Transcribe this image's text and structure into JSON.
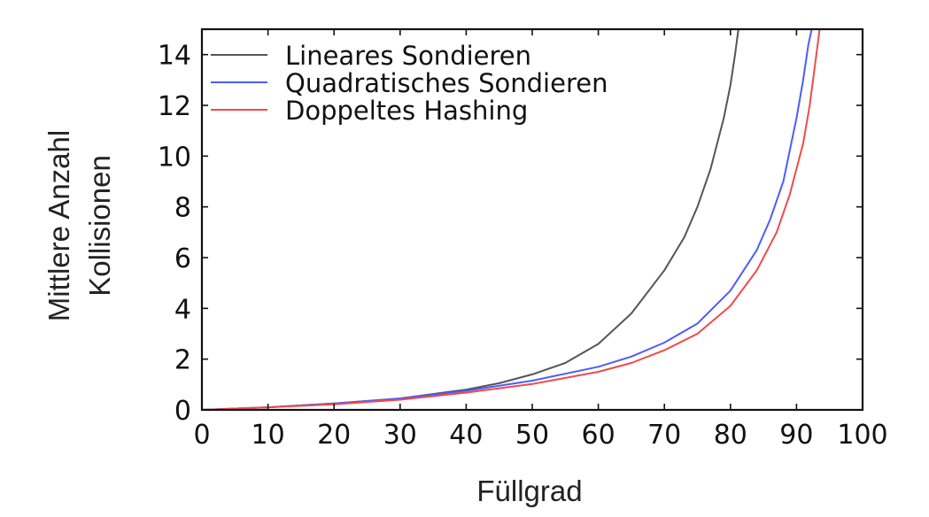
{
  "chart_data": {
    "type": "line",
    "title": "",
    "xlabel": "Füllgrad",
    "ylabel": [
      "Mittlere Anzahl",
      "Kollisionen"
    ],
    "xlim": [
      0,
      100
    ],
    "ylim": [
      0,
      15
    ],
    "xticks": [
      "0",
      "10",
      "20",
      "30",
      "40",
      "50",
      "60",
      "70",
      "80",
      "90",
      "100"
    ],
    "yticks": [
      "0",
      "2",
      "4",
      "6",
      "8",
      "10",
      "12",
      "14"
    ],
    "grid": false,
    "legend_position": "top-left",
    "series": [
      {
        "name": "Lineares Sondieren",
        "color": "#555555",
        "x": [
          0,
          10,
          20,
          30,
          40,
          45,
          50,
          55,
          60,
          65,
          70,
          73,
          75,
          77,
          79,
          80,
          80.7,
          81.2
        ],
        "y": [
          0,
          0.1,
          0.25,
          0.45,
          0.8,
          1.05,
          1.4,
          1.85,
          2.6,
          3.8,
          5.5,
          6.8,
          8.0,
          9.5,
          11.5,
          12.8,
          14.0,
          15.0
        ]
      },
      {
        "name": "Quadratisches Sondieren",
        "color": "#4d5cff",
        "x": [
          0,
          10,
          20,
          30,
          40,
          50,
          60,
          65,
          70,
          75,
          80,
          84,
          86,
          88,
          90,
          91,
          91.8,
          92.3
        ],
        "y": [
          0,
          0.1,
          0.25,
          0.45,
          0.75,
          1.15,
          1.7,
          2.1,
          2.65,
          3.4,
          4.7,
          6.3,
          7.5,
          9.0,
          11.5,
          13.0,
          14.4,
          15.0
        ]
      },
      {
        "name": "Doppeltes Hashing",
        "color": "#f04a4a",
        "x": [
          0,
          10,
          20,
          30,
          40,
          50,
          60,
          65,
          70,
          75,
          80,
          84,
          87,
          89,
          91,
          92,
          93,
          93.5
        ],
        "y": [
          0,
          0.1,
          0.22,
          0.4,
          0.68,
          1.02,
          1.5,
          1.85,
          2.35,
          3.0,
          4.1,
          5.5,
          7.0,
          8.5,
          10.5,
          12.0,
          14.0,
          15.0
        ]
      }
    ]
  }
}
